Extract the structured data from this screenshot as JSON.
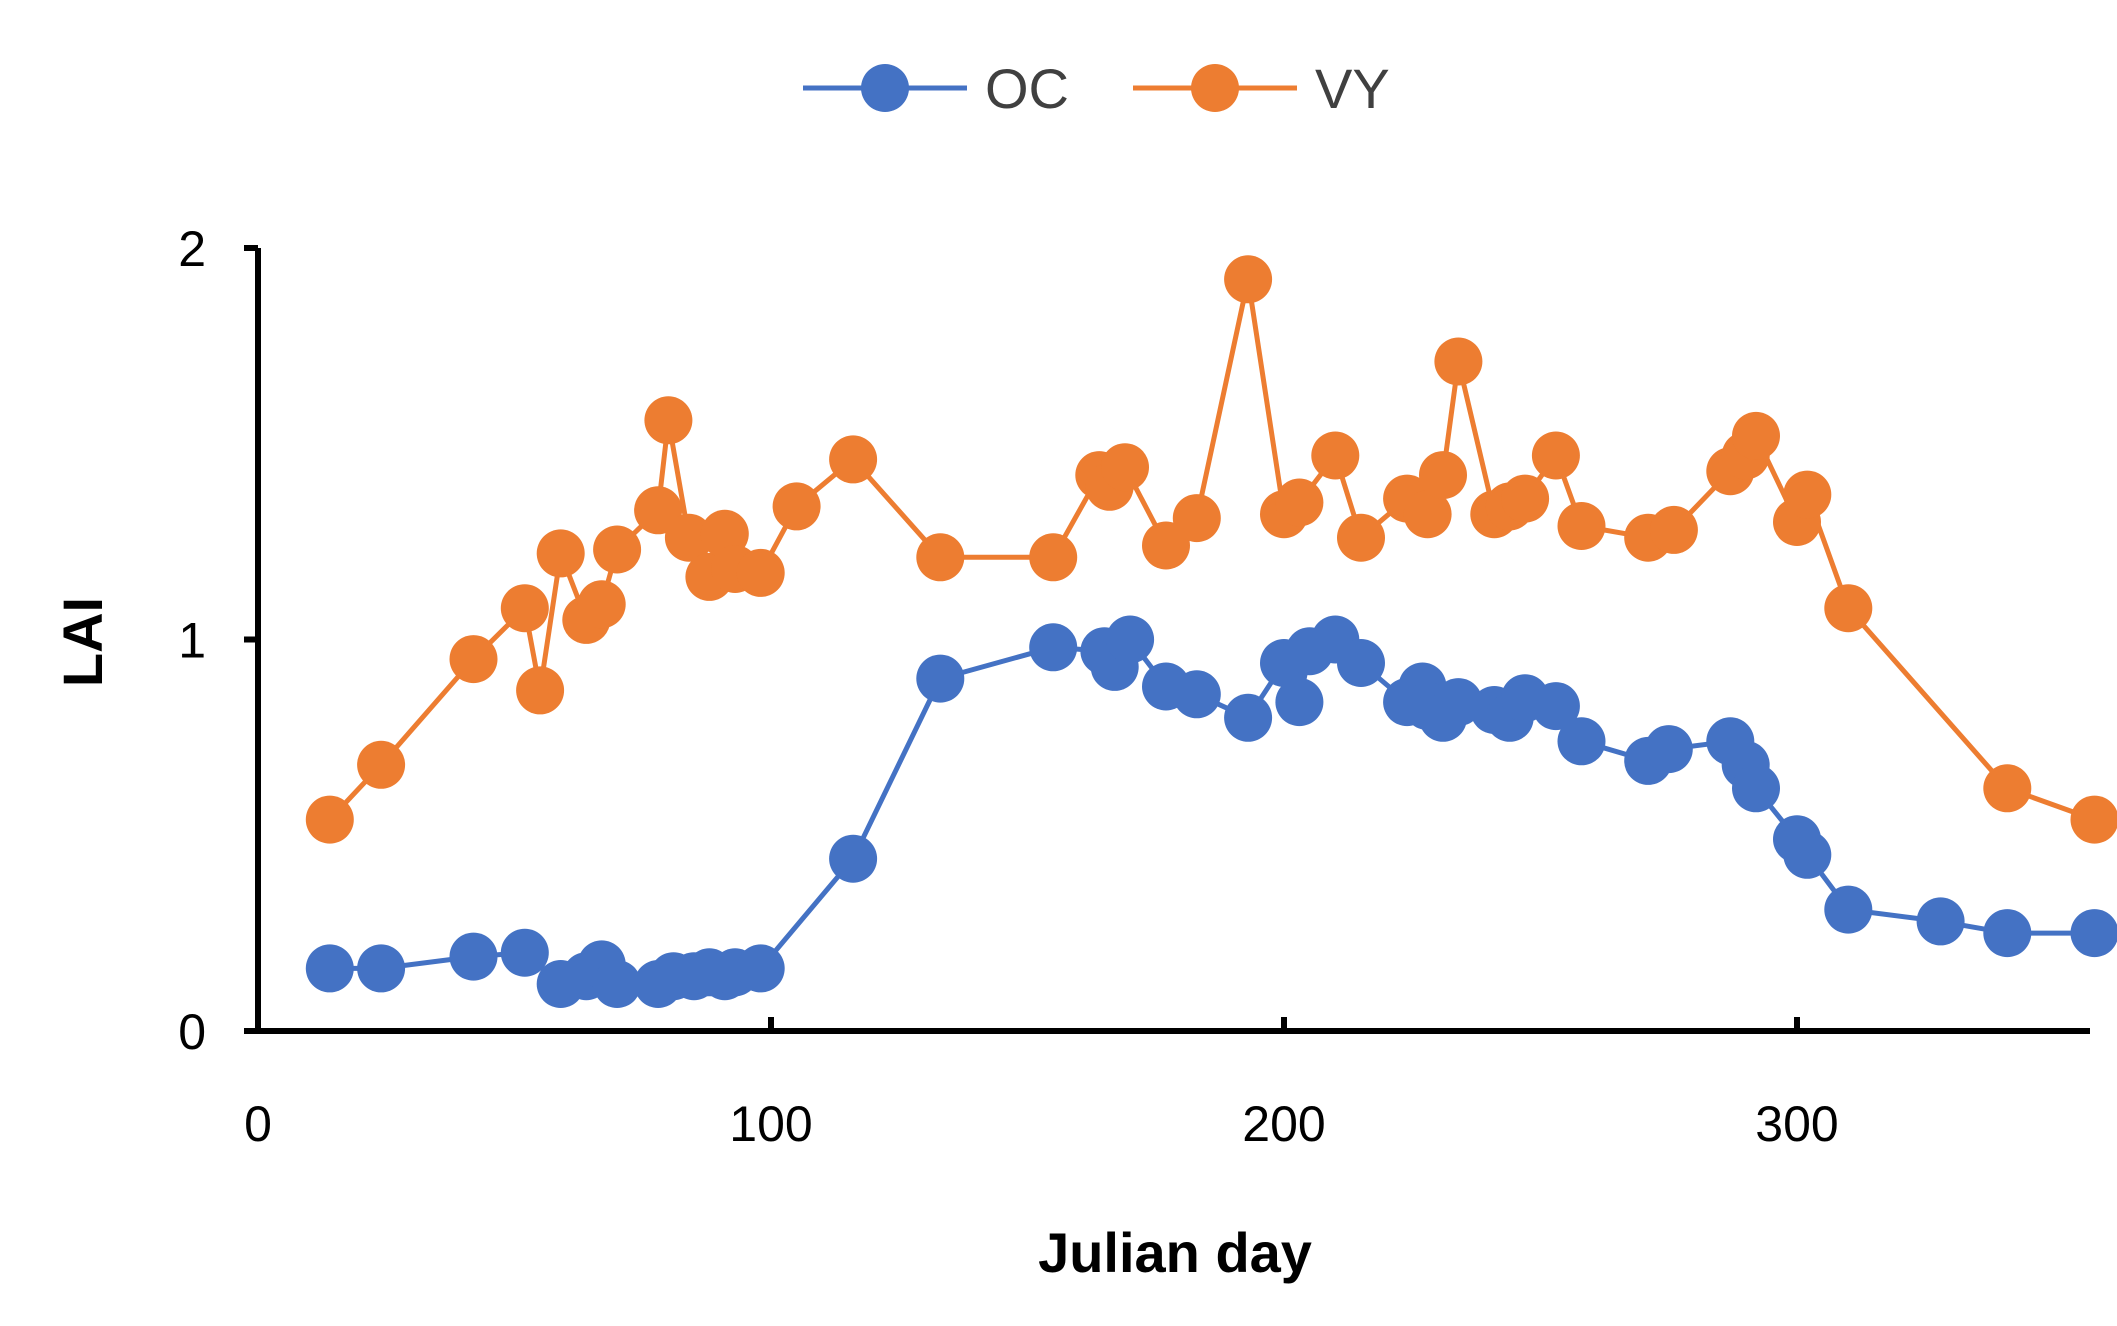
{
  "chart_data": {
    "type": "line",
    "title": "",
    "xlabel": "Julian day",
    "ylabel": "LAI",
    "xlim": [
      0,
      365
    ],
    "ylim": [
      0,
      2
    ],
    "xticks": [
      0,
      100,
      200,
      300
    ],
    "yticks": [
      0,
      1,
      2
    ],
    "xtick_labels": [
      "0",
      "100",
      "200",
      "300"
    ],
    "ytick_labels": [
      "0",
      "1",
      "2"
    ],
    "grid": false,
    "legend_position": "top-center",
    "series": [
      {
        "name": "OC",
        "color": "#4472C4",
        "x": [
          14,
          24,
          42,
          52,
          59,
          64,
          67,
          70,
          78,
          81,
          85,
          88,
          91,
          93,
          98,
          116,
          133,
          155,
          165,
          167,
          170,
          177,
          183,
          193,
          200,
          203,
          205,
          210,
          215,
          224,
          227,
          228,
          231,
          234,
          241,
          244,
          247,
          253,
          258,
          271,
          275,
          287,
          290,
          292,
          300,
          302,
          310,
          328,
          341,
          358
        ],
        "y": [
          0.16,
          0.16,
          0.19,
          0.2,
          0.12,
          0.14,
          0.17,
          0.12,
          0.12,
          0.14,
          0.14,
          0.15,
          0.14,
          0.15,
          0.16,
          0.44,
          0.9,
          0.98,
          0.97,
          0.93,
          1.0,
          0.88,
          0.86,
          0.8,
          0.94,
          0.84,
          0.97,
          1.0,
          0.94,
          0.84,
          0.88,
          0.83,
          0.8,
          0.84,
          0.82,
          0.8,
          0.85,
          0.83,
          0.74,
          0.69,
          0.72,
          0.74,
          0.68,
          0.62,
          0.49,
          0.45,
          0.31,
          0.28,
          0.25,
          0.25
        ]
      },
      {
        "name": "VY",
        "color": "#ED7D31",
        "x": [
          14,
          24,
          42,
          52,
          55,
          59,
          64,
          67,
          70,
          78,
          80,
          84,
          88,
          91,
          93,
          98,
          105,
          116,
          133,
          155,
          164,
          166,
          169,
          177,
          183,
          193,
          200,
          203,
          210,
          215,
          224,
          228,
          231,
          234,
          241,
          244,
          247,
          253,
          258,
          271,
          276,
          287,
          290,
          292,
          300,
          302,
          310,
          341,
          358
        ],
        "y": [
          0.54,
          0.68,
          0.95,
          1.08,
          0.87,
          1.22,
          1.05,
          1.09,
          1.23,
          1.33,
          1.56,
          1.26,
          1.16,
          1.27,
          1.18,
          1.17,
          1.34,
          1.46,
          1.21,
          1.21,
          1.42,
          1.39,
          1.44,
          1.24,
          1.31,
          1.92,
          1.32,
          1.35,
          1.47,
          1.26,
          1.36,
          1.32,
          1.42,
          1.71,
          1.32,
          1.34,
          1.36,
          1.47,
          1.29,
          1.26,
          1.28,
          1.43,
          1.47,
          1.52,
          1.3,
          1.37,
          1.08,
          0.62,
          0.54
        ]
      }
    ]
  }
}
